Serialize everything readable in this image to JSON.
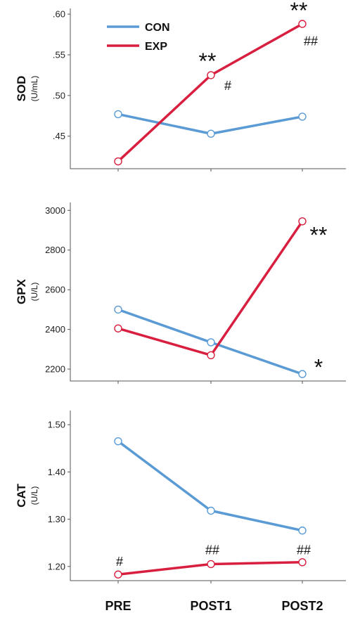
{
  "chart_data": [
    {
      "type": "line",
      "ylabel": "SOD",
      "yunit": "(U/mL)",
      "categories": [
        "PRE",
        "POST1",
        "POST2"
      ],
      "yticks": [
        ".45",
        ".50",
        ".55",
        ".60"
      ],
      "ylim": [
        0.41,
        0.607
      ],
      "series": [
        {
          "name": "CON",
          "color": "#5b9bd5",
          "values": [
            0.477,
            0.453,
            0.474
          ]
        },
        {
          "name": "EXP",
          "color": "#d81f3f",
          "values": [
            0.419,
            0.525,
            0.588
          ]
        }
      ],
      "legend": {
        "position": "top-left",
        "entries": [
          "CON",
          "EXP"
        ]
      },
      "annotations": [
        {
          "text": "**",
          "category": "POST1",
          "value": 0.545,
          "style": "star"
        },
        {
          "text": "#",
          "category": "POST1",
          "value": 0.512,
          "style": "hash"
        },
        {
          "text": "**",
          "category": "POST2",
          "value": 0.607,
          "style": "star"
        },
        {
          "text": "##",
          "category": "POST2",
          "value": 0.567,
          "style": "hash"
        }
      ]
    },
    {
      "type": "line",
      "ylabel": "GPX",
      "yunit": "(U/L)",
      "categories": [
        "PRE",
        "POST1",
        "POST2"
      ],
      "yticks": [
        "2200",
        "2400",
        "2600",
        "2800",
        "3000"
      ],
      "ylim": [
        2140,
        3040
      ],
      "series": [
        {
          "name": "CON",
          "color": "#5b9bd5",
          "values": [
            2500,
            2335,
            2175
          ]
        },
        {
          "name": "EXP",
          "color": "#d81f3f",
          "values": [
            2405,
            2270,
            2945
          ]
        }
      ],
      "annotations": [
        {
          "text": "**",
          "category": "POST2",
          "value": 2885,
          "style": "star"
        },
        {
          "text": "*",
          "category": "POST2",
          "value": 2220,
          "style": "star"
        }
      ]
    },
    {
      "type": "line",
      "ylabel": "CAT",
      "yunit": "(U/L)",
      "categories": [
        "PRE",
        "POST1",
        "POST2"
      ],
      "yticks": [
        "1.20",
        "1.30",
        "1.40",
        "1.50"
      ],
      "ylim": [
        1.17,
        1.53
      ],
      "series": [
        {
          "name": "CON",
          "color": "#5b9bd5",
          "values": [
            1.465,
            1.318,
            1.276
          ]
        },
        {
          "name": "EXP",
          "color": "#d81f3f",
          "values": [
            1.183,
            1.205,
            1.209
          ]
        }
      ],
      "annotations": [
        {
          "text": "#",
          "category": "PRE",
          "value": 1.21,
          "style": "hash"
        },
        {
          "text": "##",
          "category": "POST1",
          "value": 1.235,
          "style": "hash"
        },
        {
          "text": "##",
          "category": "POST2",
          "value": 1.235,
          "style": "hash"
        }
      ]
    }
  ]
}
